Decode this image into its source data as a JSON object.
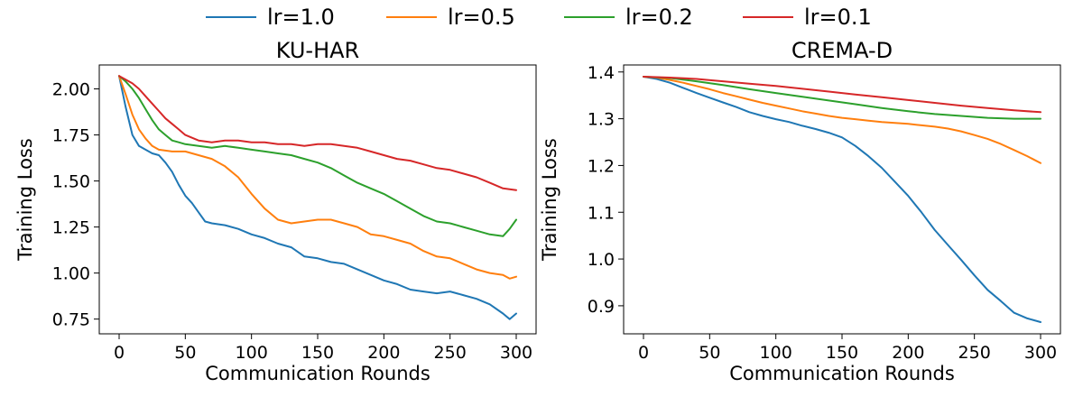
{
  "legend": {
    "items": [
      {
        "label": "lr=1.0",
        "color": "#1f77b4"
      },
      {
        "label": "lr=0.5",
        "color": "#ff7f0e"
      },
      {
        "label": "lr=0.2",
        "color": "#2ca02c"
      },
      {
        "label": "lr=0.1",
        "color": "#d62728"
      }
    ],
    "placement": "top-center"
  },
  "chart_data": [
    {
      "type": "line",
      "title": "KU-HAR",
      "xlabel": "Communication Rounds",
      "ylabel": "Training Loss",
      "xlim": [
        -15,
        315
      ],
      "ylim": [
        0.67,
        2.13
      ],
      "xticks": [
        0,
        50,
        100,
        150,
        200,
        250,
        300
      ],
      "yticks": [
        0.75,
        1.0,
        1.25,
        1.5,
        1.75,
        2.0
      ],
      "ytick_format": 2,
      "grid": false,
      "series": [
        {
          "name": "lr=1.0",
          "color": "#1f77b4",
          "x": [
            0,
            5,
            10,
            15,
            20,
            25,
            30,
            35,
            40,
            45,
            50,
            55,
            60,
            65,
            70,
            80,
            90,
            100,
            110,
            120,
            130,
            140,
            150,
            160,
            170,
            180,
            190,
            200,
            210,
            220,
            230,
            240,
            250,
            260,
            270,
            280,
            290,
            295,
            300
          ],
          "y": [
            2.07,
            1.9,
            1.75,
            1.69,
            1.67,
            1.65,
            1.64,
            1.6,
            1.55,
            1.48,
            1.42,
            1.38,
            1.33,
            1.28,
            1.27,
            1.26,
            1.24,
            1.21,
            1.19,
            1.16,
            1.14,
            1.09,
            1.08,
            1.06,
            1.05,
            1.02,
            0.99,
            0.96,
            0.94,
            0.91,
            0.9,
            0.89,
            0.9,
            0.88,
            0.86,
            0.83,
            0.78,
            0.75,
            0.78
          ]
        },
        {
          "name": "lr=0.5",
          "color": "#ff7f0e",
          "x": [
            0,
            5,
            10,
            15,
            20,
            25,
            30,
            40,
            50,
            60,
            70,
            80,
            90,
            100,
            110,
            120,
            130,
            140,
            150,
            160,
            170,
            180,
            190,
            200,
            210,
            220,
            230,
            240,
            250,
            260,
            270,
            280,
            290,
            295,
            300
          ],
          "y": [
            2.07,
            1.97,
            1.86,
            1.78,
            1.73,
            1.69,
            1.67,
            1.66,
            1.66,
            1.64,
            1.62,
            1.58,
            1.52,
            1.43,
            1.35,
            1.29,
            1.27,
            1.28,
            1.29,
            1.29,
            1.27,
            1.25,
            1.21,
            1.2,
            1.18,
            1.16,
            1.12,
            1.09,
            1.08,
            1.05,
            1.02,
            1.0,
            0.99,
            0.97,
            0.98
          ]
        },
        {
          "name": "lr=0.2",
          "color": "#2ca02c",
          "x": [
            0,
            5,
            10,
            15,
            20,
            25,
            30,
            35,
            40,
            45,
            50,
            60,
            70,
            80,
            90,
            100,
            110,
            120,
            130,
            140,
            150,
            160,
            170,
            180,
            190,
            200,
            210,
            220,
            230,
            240,
            250,
            260,
            270,
            280,
            290,
            295,
            300
          ],
          "y": [
            2.07,
            2.04,
            2.0,
            1.95,
            1.89,
            1.83,
            1.78,
            1.75,
            1.72,
            1.71,
            1.7,
            1.69,
            1.68,
            1.69,
            1.68,
            1.67,
            1.66,
            1.65,
            1.64,
            1.62,
            1.6,
            1.57,
            1.53,
            1.49,
            1.46,
            1.43,
            1.39,
            1.35,
            1.31,
            1.28,
            1.27,
            1.25,
            1.23,
            1.21,
            1.2,
            1.24,
            1.29
          ]
        },
        {
          "name": "lr=0.1",
          "color": "#d62728",
          "x": [
            0,
            5,
            10,
            15,
            20,
            25,
            30,
            35,
            40,
            45,
            50,
            60,
            70,
            80,
            90,
            100,
            110,
            120,
            130,
            140,
            150,
            160,
            170,
            180,
            190,
            200,
            210,
            220,
            230,
            240,
            250,
            260,
            270,
            280,
            290,
            300
          ],
          "y": [
            2.07,
            2.05,
            2.03,
            2.0,
            1.96,
            1.92,
            1.88,
            1.84,
            1.81,
            1.78,
            1.75,
            1.72,
            1.71,
            1.72,
            1.72,
            1.71,
            1.71,
            1.7,
            1.7,
            1.69,
            1.7,
            1.7,
            1.69,
            1.68,
            1.66,
            1.64,
            1.62,
            1.61,
            1.59,
            1.57,
            1.56,
            1.54,
            1.52,
            1.49,
            1.46,
            1.45
          ]
        }
      ]
    },
    {
      "type": "line",
      "title": "CREMA-D",
      "xlabel": "Communication Rounds",
      "ylabel": "Training Loss",
      "xlim": [
        -15,
        315
      ],
      "ylim": [
        0.84,
        1.415
      ],
      "xticks": [
        0,
        50,
        100,
        150,
        200,
        250,
        300
      ],
      "yticks": [
        0.9,
        1.0,
        1.1,
        1.2,
        1.3,
        1.4
      ],
      "ytick_format": 1,
      "grid": false,
      "series": [
        {
          "name": "lr=1.0",
          "color": "#1f77b4",
          "x": [
            0,
            10,
            20,
            30,
            40,
            50,
            60,
            70,
            80,
            90,
            100,
            110,
            120,
            130,
            140,
            150,
            160,
            170,
            180,
            190,
            200,
            210,
            220,
            230,
            240,
            250,
            260,
            270,
            280,
            290,
            300
          ],
          "y": [
            1.39,
            1.385,
            1.377,
            1.366,
            1.355,
            1.345,
            1.335,
            1.325,
            1.314,
            1.306,
            1.299,
            1.293,
            1.285,
            1.278,
            1.27,
            1.26,
            1.242,
            1.22,
            1.195,
            1.165,
            1.135,
            1.1,
            1.062,
            1.03,
            0.998,
            0.965,
            0.934,
            0.91,
            0.885,
            0.873,
            0.865
          ]
        },
        {
          "name": "lr=0.5",
          "color": "#ff7f0e",
          "x": [
            0,
            10,
            20,
            30,
            40,
            50,
            60,
            70,
            80,
            90,
            100,
            110,
            120,
            130,
            140,
            150,
            160,
            170,
            180,
            190,
            200,
            210,
            220,
            230,
            240,
            250,
            260,
            270,
            280,
            290,
            300
          ],
          "y": [
            1.39,
            1.388,
            1.383,
            1.377,
            1.37,
            1.363,
            1.355,
            1.348,
            1.341,
            1.334,
            1.328,
            1.322,
            1.316,
            1.311,
            1.306,
            1.302,
            1.299,
            1.296,
            1.293,
            1.291,
            1.289,
            1.286,
            1.283,
            1.279,
            1.273,
            1.265,
            1.257,
            1.246,
            1.233,
            1.22,
            1.205
          ]
        },
        {
          "name": "lr=0.2",
          "color": "#2ca02c",
          "x": [
            0,
            20,
            40,
            60,
            80,
            100,
            120,
            140,
            160,
            180,
            200,
            220,
            240,
            260,
            280,
            300
          ],
          "y": [
            1.39,
            1.387,
            1.38,
            1.372,
            1.363,
            1.355,
            1.347,
            1.339,
            1.331,
            1.323,
            1.316,
            1.31,
            1.306,
            1.302,
            1.3,
            1.3
          ]
        },
        {
          "name": "lr=0.1",
          "color": "#d62728",
          "x": [
            0,
            20,
            40,
            60,
            80,
            100,
            120,
            140,
            160,
            180,
            200,
            220,
            240,
            260,
            280,
            300
          ],
          "y": [
            1.39,
            1.388,
            1.385,
            1.38,
            1.375,
            1.37,
            1.364,
            1.358,
            1.352,
            1.346,
            1.34,
            1.334,
            1.328,
            1.323,
            1.318,
            1.314
          ]
        }
      ]
    }
  ]
}
